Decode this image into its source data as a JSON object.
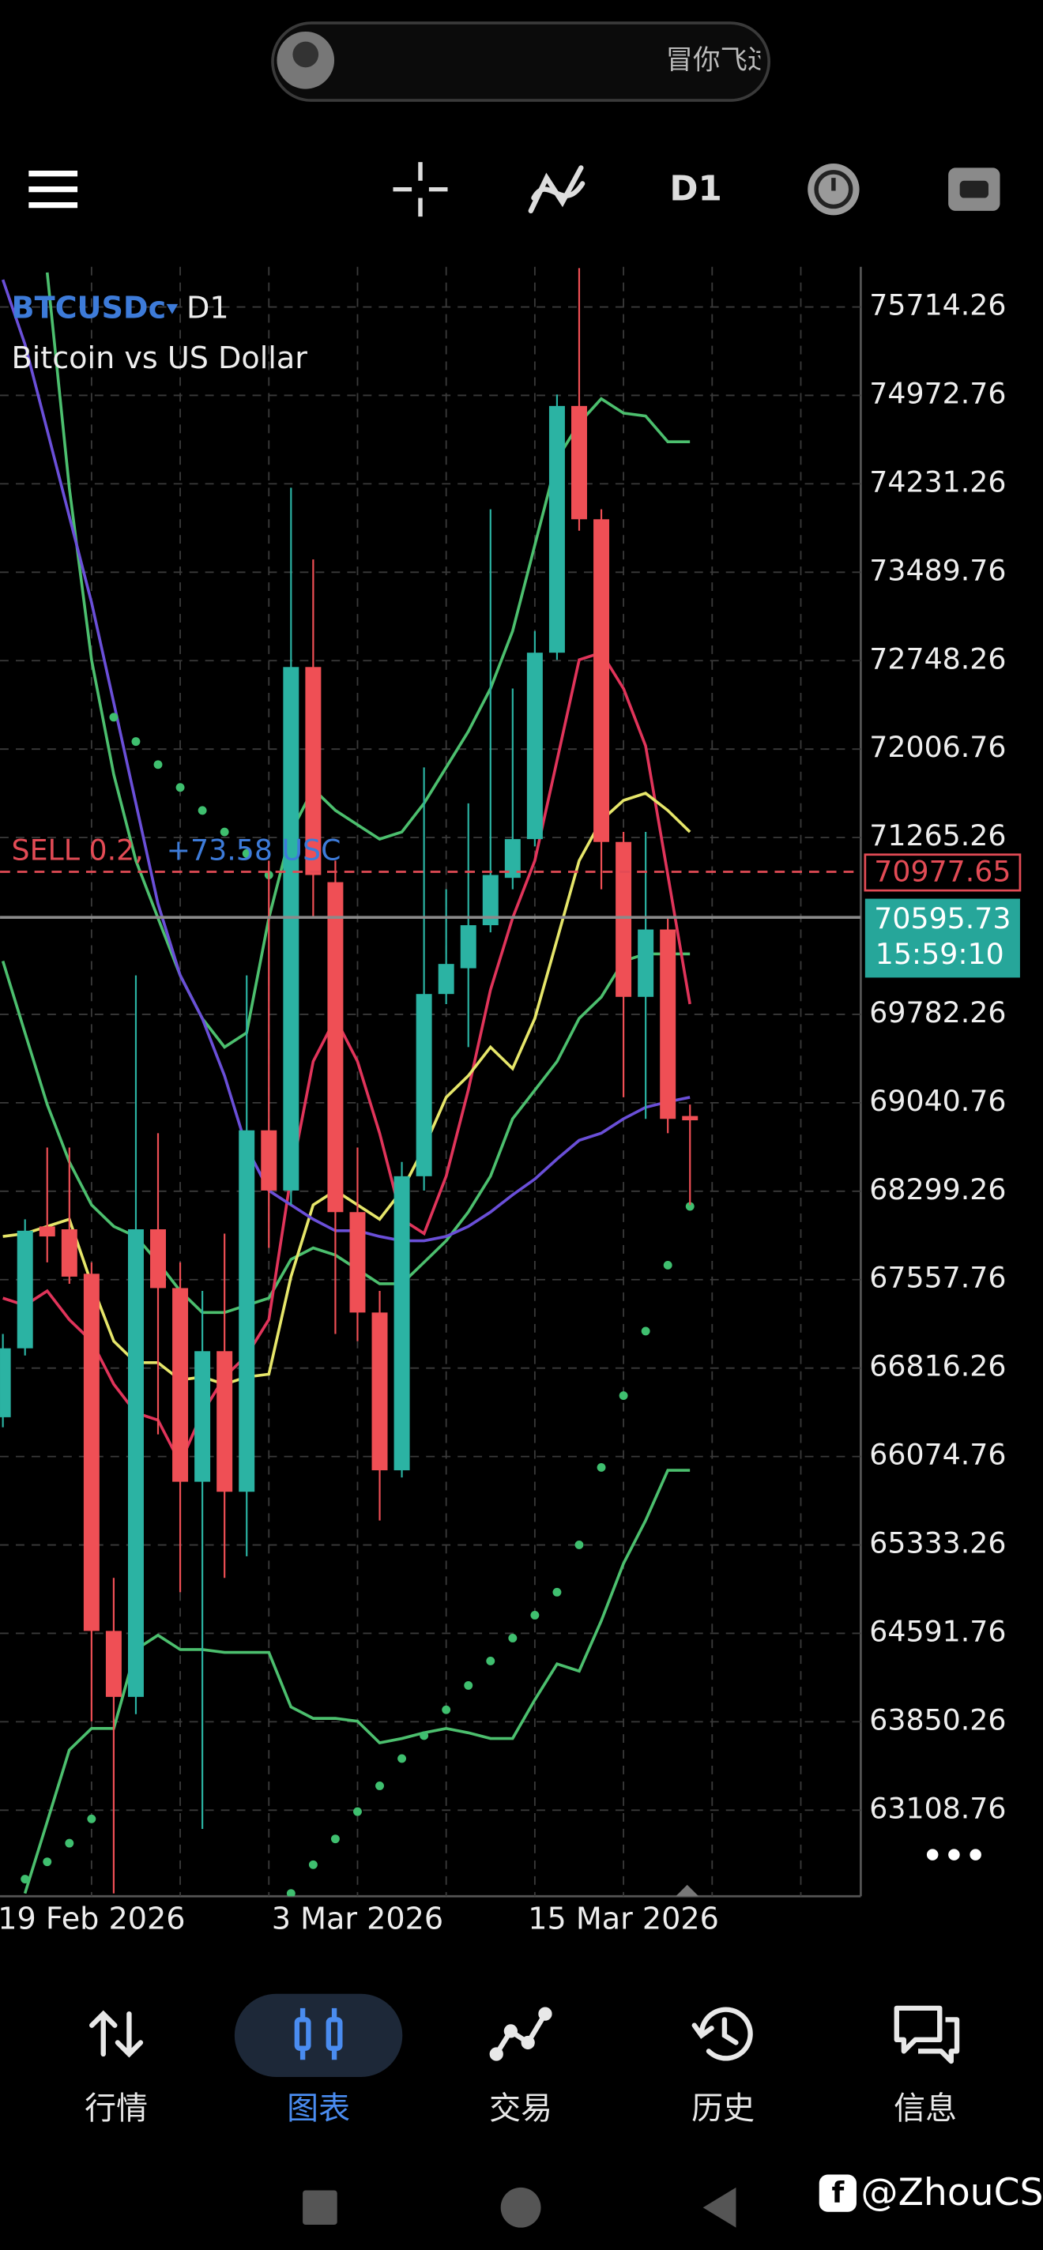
{
  "status_bar": {
    "user_text": "冒你飞过"
  },
  "toolbar": {
    "timeframe": "D1"
  },
  "chart_data": {
    "type": "candlestick",
    "symbol": "BTCUSDc",
    "timeframe": "D1",
    "description": "Bitcoin vs US Dollar",
    "categories": [
      null,
      null,
      null,
      null,
      "19 Feb 2026",
      null,
      null,
      null,
      null,
      null,
      null,
      null,
      null,
      null,
      null,
      null,
      "3 Mar 2026",
      null,
      null,
      null,
      null,
      null,
      null,
      null,
      null,
      null,
      null,
      null,
      "15 Mar 2026",
      null,
      null,
      null
    ],
    "open": [
      66404,
      66982,
      68004,
      67980,
      67607,
      64612,
      64059,
      67980,
      67487,
      65863,
      66958,
      65779,
      68810,
      68305,
      72695,
      70891,
      68124,
      67282,
      65959,
      68425,
      69953,
      70169,
      70530,
      70927,
      71252,
      72815,
      74884,
      73934,
      71228,
      69929,
      70494,
      68930
    ],
    "high": [
      67102,
      68064,
      68666,
      68666,
      67703,
      65057,
      70109,
      68786,
      67703,
      67463,
      67944,
      70109,
      71071,
      74198,
      73597,
      71071,
      68666,
      67463,
      68545,
      71853,
      70831,
      71552,
      74018,
      72515,
      72996,
      74980,
      76040,
      74018,
      71312,
      71312,
      70590,
      69026
    ],
    "low": [
      66320,
      66922,
      67703,
      67523,
      63854,
      62411,
      63914,
      66260,
      64937,
      62952,
      65057,
      65238,
      67824,
      68184,
      70590,
      67102,
      67042,
      65538,
      65899,
      68305,
      69868,
      69508,
      70470,
      70831,
      71191,
      72755,
      73838,
      70831,
      69087,
      68906,
      68786,
      68184
    ],
    "close": [
      66982,
      67968,
      67920,
      67583,
      64612,
      64059,
      67980,
      67487,
      65863,
      66958,
      65779,
      68810,
      68305,
      72695,
      70951,
      68124,
      67282,
      65959,
      68425,
      69953,
      70205,
      70530,
      70951,
      71252,
      72815,
      74884,
      73934,
      71228,
      69929,
      70494,
      68906,
      68894
    ],
    "up_color": "#2bb3a3",
    "down_color": "#ef4f55",
    "series": [
      {
        "type": "line",
        "color": "#4cbf6e",
        "values": [
          null,
          null,
          76003,
          74198,
          72755,
          71793,
          71071,
          70590,
          70109,
          69748,
          69508,
          69628,
          70590,
          71312,
          71673,
          71492,
          71372,
          71252,
          71312,
          71552,
          71853,
          72154,
          72515,
          72996,
          73717,
          74439,
          74740,
          74944,
          74824,
          74800,
          74583,
          74583
        ]
      },
      {
        "type": "line",
        "color": "#4cbf6e",
        "values": [
          70229,
          69628,
          69026,
          68545,
          68184,
          68004,
          67920,
          67703,
          67463,
          67282,
          67282,
          67343,
          67403,
          67727,
          67824,
          67763,
          67643,
          67523,
          67523,
          67703,
          67884,
          68124,
          68425,
          68906,
          69147,
          69387,
          69748,
          69928,
          70229,
          70289,
          70289,
          70289
        ]
      },
      {
        "type": "line",
        "color": "#4cbf6e",
        "values": [
          null,
          62411,
          63012,
          63614,
          63794,
          63794,
          64456,
          64576,
          64456,
          64456,
          64432,
          64432,
          64432,
          63975,
          63878,
          63878,
          63854,
          63674,
          63710,
          63758,
          63794,
          63758,
          63710,
          63710,
          64035,
          64335,
          64275,
          64696,
          65177,
          65538,
          65959,
          65959
        ]
      },
      {
        "type": "line",
        "color": "#e0345a",
        "values": [
          67403,
          67343,
          67463,
          67222,
          67042,
          66681,
          66440,
          66380,
          66019,
          66440,
          66741,
          66922,
          67222,
          68425,
          69387,
          69748,
          69387,
          68786,
          68064,
          67944,
          68425,
          69147,
          69989,
          70590,
          71071,
          71913,
          72755,
          72815,
          72515,
          72033,
          70951,
          69868
        ]
      },
      {
        "type": "line",
        "color": "#e6e66a",
        "values": [
          67920,
          67944,
          68004,
          68064,
          67523,
          67042,
          66861,
          66861,
          66717,
          66741,
          66681,
          66741,
          66765,
          67583,
          68184,
          68305,
          68184,
          68064,
          68305,
          68666,
          69087,
          69267,
          69508,
          69327,
          69748,
          70410,
          71071,
          71408,
          71576,
          71637,
          71492,
          71312
        ]
      },
      {
        "type": "line",
        "color": "#6a4fd8",
        "values": [
          75943,
          75401,
          74680,
          73958,
          73236,
          72394,
          71552,
          70710,
          70109,
          69748,
          69267,
          68666,
          68305,
          68184,
          68064,
          67968,
          67968,
          67920,
          67884,
          67884,
          67920,
          68004,
          68124,
          68269,
          68401,
          68569,
          68726,
          68786,
          68906,
          69002,
          69050,
          69087
        ]
      },
      {
        "type": "scatter",
        "color": "#3fbf6f",
        "values": [
          null,
          62531,
          62676,
          62832,
          63036,
          72274,
          72070,
          71877,
          71685,
          71492,
          71312,
          71131,
          70951,
          62411,
          62652,
          62868,
          63097,
          63313,
          63542,
          63734,
          63951,
          64155,
          64360,
          64552,
          64744,
          64937,
          65334,
          65983,
          66585,
          67126,
          67679,
          68172
        ]
      }
    ],
    "ylim": [
      62387,
      76051
    ],
    "yticks": [
      75714.26,
      74972.76,
      74231.26,
      73489.76,
      72748.26,
      72006.76,
      71265.26,
      69782.26,
      69040.76,
      68299.26,
      67557.76,
      66816.26,
      66074.76,
      65333.26,
      64591.76,
      63850.26,
      63108.76
    ],
    "grid": true,
    "position": {
      "label": "SELL 0.2,",
      "profit": "+73.58 USC",
      "price": 70977.65
    },
    "current_price": 70595.73,
    "countdown": "15:59:10"
  },
  "bottom_nav": {
    "items": [
      {
        "label": "行情"
      },
      {
        "label": "图表"
      },
      {
        "label": "交易"
      },
      {
        "label": "历史"
      },
      {
        "label": "信息"
      }
    ],
    "active": 1
  },
  "watermark": "@ZhouCS"
}
